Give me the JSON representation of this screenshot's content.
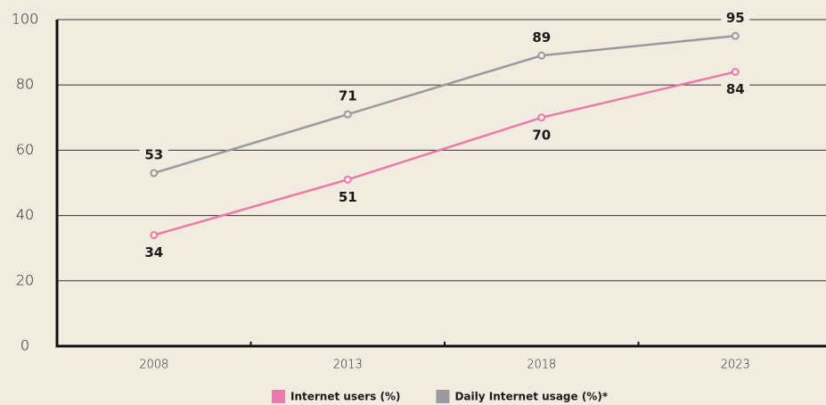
{
  "chart_data": {
    "type": "line",
    "categories": [
      "2008",
      "2013",
      "2018",
      "2023"
    ],
    "series": [
      {
        "name": "Internet users (%)",
        "color": "#e97aa9",
        "values": [
          34,
          51,
          70,
          84
        ]
      },
      {
        "name": "Daily Internet usage (%)*",
        "color": "#9a9a9e",
        "values": [
          53,
          71,
          89,
          95
        ]
      }
    ],
    "ylim": [
      0,
      100
    ],
    "yticks": [
      0,
      20,
      40,
      60,
      80,
      100
    ],
    "grid": true,
    "legend": "bottom"
  }
}
